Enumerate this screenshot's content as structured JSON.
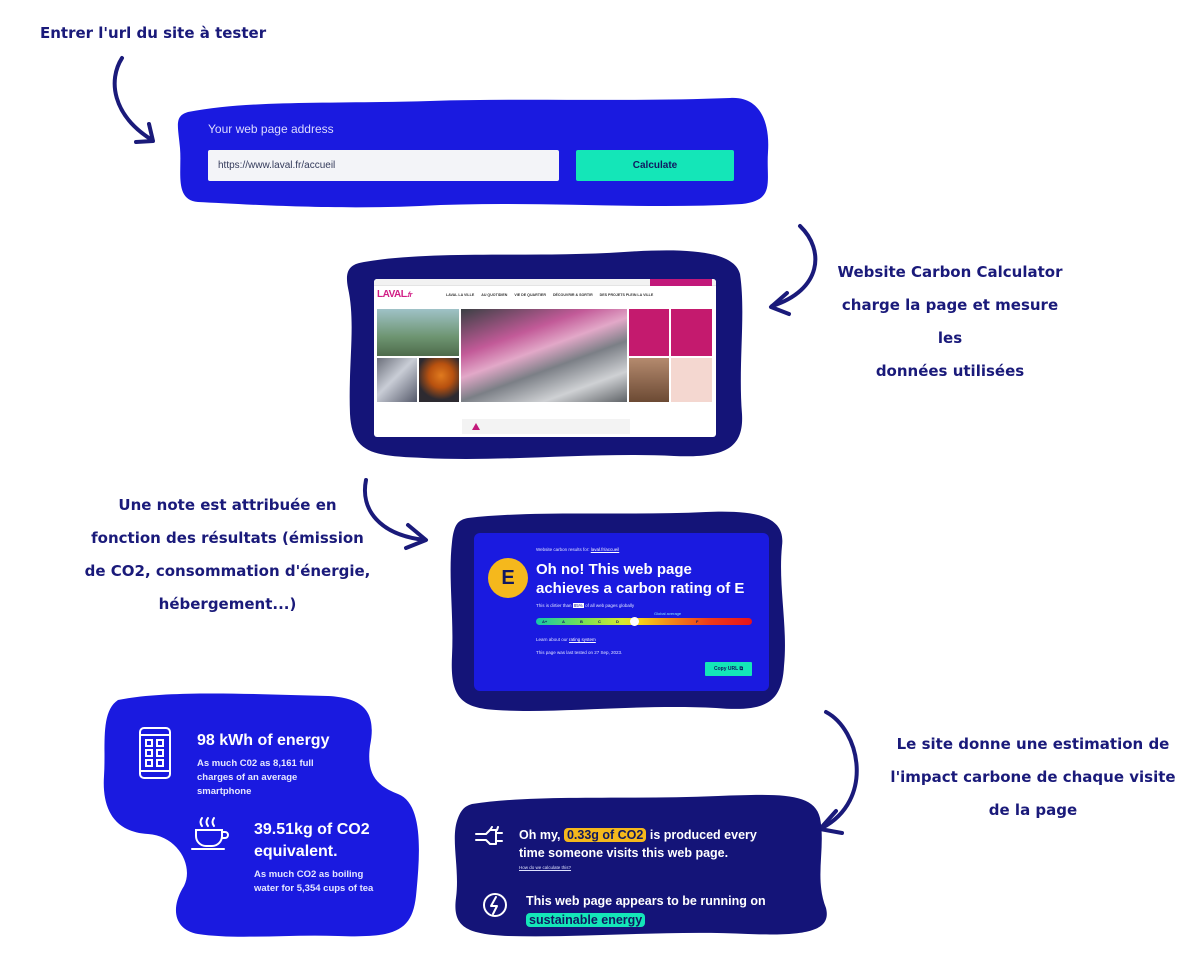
{
  "annotations": {
    "step1": "Entrer l'url du site à tester",
    "step2_lines": [
      "Website Carbon Calculator",
      "charge la page et mesure les",
      "données utilisées"
    ],
    "step3_lines": [
      "Une note est attribuée en",
      "fonction des résultats (émission",
      "de CO2, consommation d'énergie,",
      "hébergement...)"
    ],
    "step4_lines": [
      "Le site donne une estimation de",
      "l'impact carbone de chaque visite",
      "de la page"
    ]
  },
  "address_panel": {
    "label": "Your web page address",
    "input_value": "https://www.laval.fr/accueil",
    "button_label": "Calculate"
  },
  "site_preview": {
    "logo": "LAVAL",
    "logo_suffix": ".fr",
    "menu": [
      "LAVAL LA VILLE",
      "AU QUOTIDIEN",
      "VIE DE QUARTIER",
      "DÉCOUVRIR & SORTIR",
      "DES PROJETS PLEIN LA VILLE"
    ]
  },
  "rating_panel": {
    "results_prefix": "Website carbon results for:",
    "results_link": "laval.fr/accueil",
    "grade": "E",
    "title_line1": "Oh no! This web page",
    "title_line2": "achieves a carbon rating of E",
    "dirtier_prefix": "This is dirtier than",
    "dirtier_pct": "85%",
    "dirtier_suffix": "of all web pages globally",
    "global_average": "Global average",
    "scale": [
      "A+",
      "A",
      "B",
      "C",
      "D",
      "E",
      "F"
    ],
    "learn_prefix": "Learn about our",
    "learn_link": "rating system",
    "tested_on": "This page was last tested on 27 Sep, 2023.",
    "copy_label": "Copy URL"
  },
  "stats_panel": {
    "energy_title": "98 kWh of energy",
    "energy_desc_lines": [
      "As much C02 as 8,161 full",
      "charges of an average",
      "smartphone"
    ],
    "co2_title_lines": [
      "39.51kg of CO2",
      "equivalent."
    ],
    "co2_desc_lines": [
      "As much CO2 as boiling",
      "water for 5,354 cups of tea"
    ]
  },
  "co2_panel": {
    "line1_prefix": "Oh my,",
    "highlight": "0.33g of CO2",
    "line1_suffix": "is produced every",
    "line2": "time someone visits this web page.",
    "calc_link": "How do we calculate this?",
    "energy_line1": "This web page appears to be running on",
    "energy_highlight": "sustainable energy"
  },
  "colors": {
    "blob_blue": "#1a1ae0",
    "blob_navy": "#141478",
    "accent_green": "#14e6b8",
    "grade_yellow": "#f5b81c",
    "annotation_ink": "#1a1a7a"
  }
}
